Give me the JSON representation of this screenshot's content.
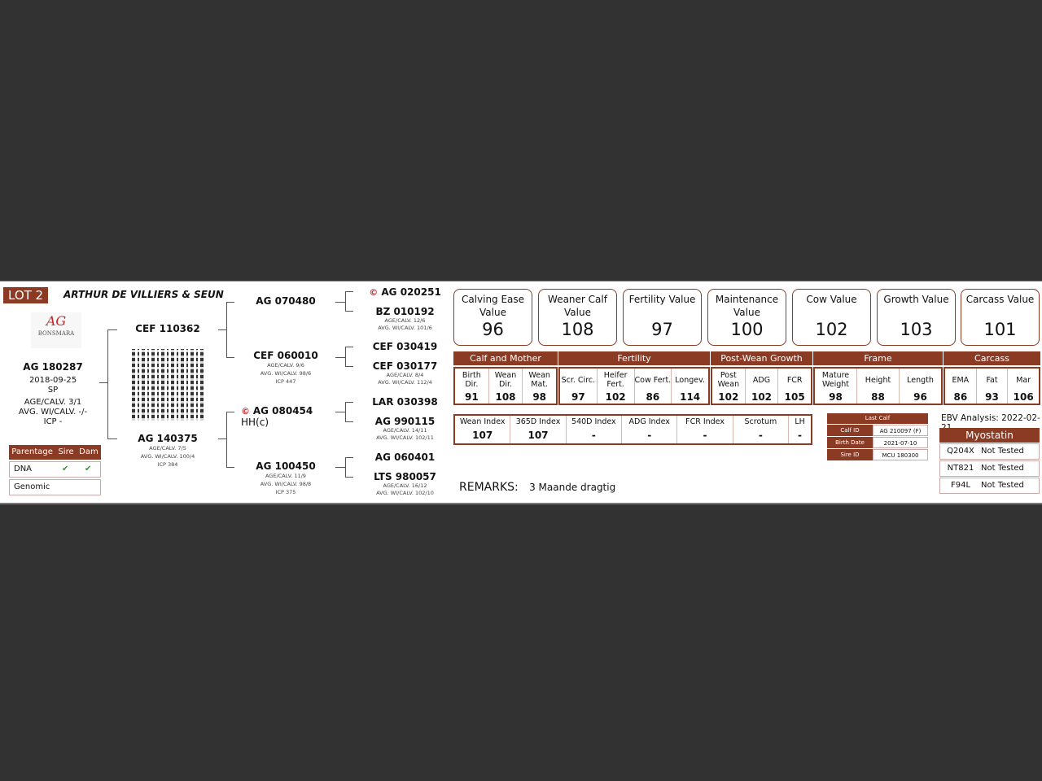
{
  "lot": "LOT 2",
  "owner": "ARTHUR DE VILLIERS & SEUN",
  "logo": {
    "mark": "AG",
    "text": "BONSMARA"
  },
  "animal": {
    "id": "AG 180287",
    "dob": "2018-09-25",
    "type": "SP",
    "age_calv": "AGE/CALV. 3/1",
    "avg_wi": "AVG. WI/CALV. -/-",
    "icp": "ICP -"
  },
  "parentage": {
    "header": [
      "Parentage",
      "Sire",
      "Dam"
    ],
    "rows": [
      {
        "label": "DNA",
        "sire": "✔",
        "dam": "✔"
      },
      {
        "label": "Genomic",
        "sire": "",
        "dam": ""
      }
    ]
  },
  "sire": {
    "id": "CEF 110362"
  },
  "dam": {
    "id": "AG 140375",
    "age_calv": "AGE/CALV. 7/5",
    "avg_wi": "AVG. WI/CALV. 100/4",
    "icp": "ICP 384"
  },
  "gp": [
    {
      "id": "AG 070480"
    },
    {
      "id": "CEF 060010",
      "age_calv": "AGE/CALV. 9/6",
      "avg_wi": "AVG. WI/CALV. 98/6",
      "icp": "ICP 447"
    },
    {
      "id": "AG 080454",
      "suffix": "HH(c)",
      "icon": "curl-icon"
    },
    {
      "id": "AG 100450",
      "age_calv": "AGE/CALV. 11/9",
      "avg_wi": "AVG. WI/CALV. 98/8",
      "icp": "ICP 375"
    }
  ],
  "ggp": [
    {
      "id": "AG 020251",
      "icon": "curl-icon"
    },
    {
      "id": "BZ 010192",
      "age_calv": "AGE/CALV. 12/6",
      "avg_wi": "AVG. WI/CALV. 101/6"
    },
    {
      "id": "CEF 030419"
    },
    {
      "id": "CEF 030177",
      "age_calv": "AGE/CALV. 8/4",
      "avg_wi": "AVG. WI/CALV. 112/4"
    },
    {
      "id": "LAR 030398"
    },
    {
      "id": "AG 990115",
      "age_calv": "AGE/CALV. 14/11",
      "avg_wi": "AVG. WI/CALV. 102/11"
    },
    {
      "id": "AG 060401"
    },
    {
      "id": "LTS 980057",
      "age_calv": "AGE/CALV. 16/12",
      "avg_wi": "AVG. WI/CALV. 102/10"
    }
  ],
  "values": [
    {
      "label": "Calving Ease Value",
      "value": "96"
    },
    {
      "label": "Weaner Calf Value",
      "value": "108"
    },
    {
      "label": "Fertility Value",
      "value": "97"
    },
    {
      "label": "Maintenance Value",
      "value": "100"
    },
    {
      "label": "Cow Value",
      "value": "102"
    },
    {
      "label": "Growth Value",
      "value": "103"
    },
    {
      "label": "Carcass Value",
      "value": "101"
    }
  ],
  "groups": [
    {
      "name": "Calf and Mother",
      "cols": [
        {
          "l": "Birth Dir.",
          "v": "91"
        },
        {
          "l": "Wean Dir.",
          "v": "108"
        },
        {
          "l": "Wean Mat.",
          "v": "98"
        }
      ]
    },
    {
      "name": "Fertility",
      "cols": [
        {
          "l": "Scr. Circ.",
          "v": "97"
        },
        {
          "l": "Heifer Fert.",
          "v": "102"
        },
        {
          "l": "Cow Fert.",
          "v": "86"
        },
        {
          "l": "Longev.",
          "v": "114"
        }
      ]
    },
    {
      "name": "Post-Wean Growth",
      "cols": [
        {
          "l": "Post Wean",
          "v": "102"
        },
        {
          "l": "ADG",
          "v": "102"
        },
        {
          "l": "FCR",
          "v": "105"
        }
      ]
    },
    {
      "name": "Frame",
      "cols": [
        {
          "l": "Mature Weight",
          "v": "98"
        },
        {
          "l": "Height",
          "v": "88"
        },
        {
          "l": "Length",
          "v": "96"
        }
      ]
    },
    {
      "name": "Carcass",
      "cols": [
        {
          "l": "EMA",
          "v": "86"
        },
        {
          "l": "Fat",
          "v": "93"
        },
        {
          "l": "Mar",
          "v": "106"
        }
      ]
    }
  ],
  "indexes": [
    {
      "l": "Wean Index",
      "v": "107"
    },
    {
      "l": "365D Index",
      "v": "107"
    },
    {
      "l": "540D Index",
      "v": "-"
    },
    {
      "l": "ADG Index",
      "v": "-"
    },
    {
      "l": "FCR Index",
      "v": "-"
    },
    {
      "l": "Scrotum",
      "v": "-"
    },
    {
      "l": "LH",
      "v": "-"
    }
  ],
  "last_calf": {
    "title": "Last Calf",
    "rows": [
      {
        "k": "Calf ID",
        "v": "AG 210097 (F)"
      },
      {
        "k": "Birth Date",
        "v": "2021-07-10"
      },
      {
        "k": "Sire ID",
        "v": "MCU 180300"
      }
    ]
  },
  "ebv": "EBV Analysis: 2022-02-21",
  "myostatin": {
    "title": "Myostatin",
    "rows": [
      {
        "k": "Q204X",
        "v": "Not Tested"
      },
      {
        "k": "NT821",
        "v": "Not Tested"
      },
      {
        "k": "F94L",
        "v": "Not Tested"
      }
    ]
  },
  "remarks": {
    "label": "REMARKS:",
    "text": "3 Maande dragtig"
  },
  "colors": {
    "brand": "#8b3a24",
    "check": "#2a9a2a",
    "curl_icon": "#c0282c"
  }
}
